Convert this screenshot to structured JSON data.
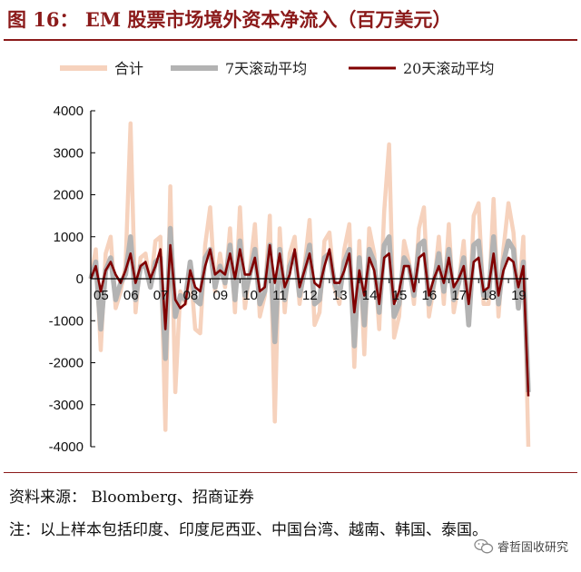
{
  "header": {
    "title": "图 16： EM 股票市场境外资本净流入（百万美元）"
  },
  "footer": {
    "source": "资料来源：  Bloomberg、招商证券",
    "note": "注：以上样本包括印度、印度尼西亚、中国台湾、越南、韩国、泰国。",
    "brand": "睿哲固收研究"
  },
  "colors": {
    "total": "#f6d2bd",
    "ma7": "#b3b3b3",
    "ma20": "#800000",
    "frame": "#8b1a1a"
  },
  "chart_data": {
    "type": "line",
    "title": "",
    "xlabel": "",
    "ylabel": "",
    "ylim": [
      -4000,
      4000
    ],
    "yticks": [
      4000,
      3000,
      2000,
      1000,
      0,
      -1000,
      -2000,
      -3000,
      -4000
    ],
    "x_tick_labels": [
      "05",
      "06",
      "07",
      "08",
      "09",
      "10",
      "11",
      "12",
      "13",
      "14",
      "15",
      "16",
      "17",
      "18",
      "19"
    ],
    "x_tick_index": [
      0,
      6,
      12,
      18,
      24,
      30,
      36,
      42,
      48,
      54,
      60,
      66,
      72,
      78,
      84
    ],
    "legend": [
      "合计",
      "7天滚动平均",
      "20天滚动平均"
    ],
    "legend_position": "top",
    "grid": false,
    "series": [
      {
        "name": "合计",
        "values": [
          0,
          700,
          -1700,
          600,
          1000,
          -700,
          -300,
          300,
          3700,
          -800,
          500,
          600,
          -200,
          900,
          1000,
          -3600,
          2200,
          -2700,
          -300,
          -600,
          300,
          -1200,
          -1300,
          800,
          1700,
          -300,
          600,
          -200,
          1200,
          -800,
          1700,
          -700,
          200,
          1300,
          -900,
          -400,
          1500,
          -3400,
          1200,
          -800,
          600,
          1000,
          -600,
          300,
          1400,
          -1100,
          -800,
          900,
          1100,
          -200,
          -600,
          700,
          1300,
          -2100,
          900,
          -1800,
          1200,
          600,
          -1200,
          1600,
          3200,
          -1400,
          -900,
          900,
          400,
          -600,
          1200,
          1700,
          -900,
          -200,
          1000,
          -600,
          1300,
          -800,
          -100,
          900,
          -1100,
          1500,
          1800,
          -600,
          -600,
          1900,
          -900,
          700,
          1800,
          1100,
          -600,
          1000,
          -4000
        ]
      },
      {
        "name": "7天滚动平均",
        "values": [
          0,
          400,
          -1200,
          200,
          500,
          -500,
          -100,
          100,
          1000,
          -500,
          300,
          300,
          -200,
          400,
          500,
          -1900,
          1200,
          -900,
          -400,
          -500,
          400,
          -500,
          -600,
          500,
          700,
          -200,
          300,
          -100,
          800,
          -500,
          900,
          -400,
          100,
          700,
          -600,
          -300,
          800,
          -1500,
          700,
          -500,
          300,
          600,
          -400,
          200,
          800,
          -600,
          -500,
          500,
          600,
          -100,
          -400,
          400,
          700,
          -1600,
          500,
          -1100,
          700,
          400,
          -800,
          800,
          1000,
          -900,
          -600,
          500,
          300,
          -400,
          800,
          900,
          -600,
          -100,
          600,
          -300,
          700,
          -500,
          -100,
          500,
          -1100,
          800,
          900,
          -400,
          -400,
          1000,
          -600,
          400,
          900,
          700,
          -700,
          400,
          -2700
        ]
      },
      {
        "name": "20天滚动平均",
        "values": [
          0,
          300,
          -300,
          200,
          400,
          100,
          -100,
          200,
          600,
          -100,
          300,
          400,
          0,
          300,
          700,
          -1200,
          800,
          -500,
          -700,
          -600,
          200,
          -200,
          -300,
          300,
          700,
          100,
          200,
          100,
          600,
          0,
          700,
          100,
          100,
          500,
          -300,
          -200,
          800,
          -100,
          600,
          -200,
          100,
          700,
          -200,
          200,
          600,
          -100,
          -200,
          300,
          700,
          -100,
          -100,
          200,
          600,
          -800,
          200,
          -400,
          500,
          200,
          -600,
          500,
          600,
          -600,
          -300,
          300,
          300,
          -300,
          500,
          600,
          -400,
          0,
          300,
          -100,
          500,
          -200,
          0,
          300,
          -600,
          400,
          500,
          -300,
          -200,
          600,
          -400,
          200,
          500,
          400,
          -200,
          300,
          -2800
        ]
      }
    ]
  }
}
